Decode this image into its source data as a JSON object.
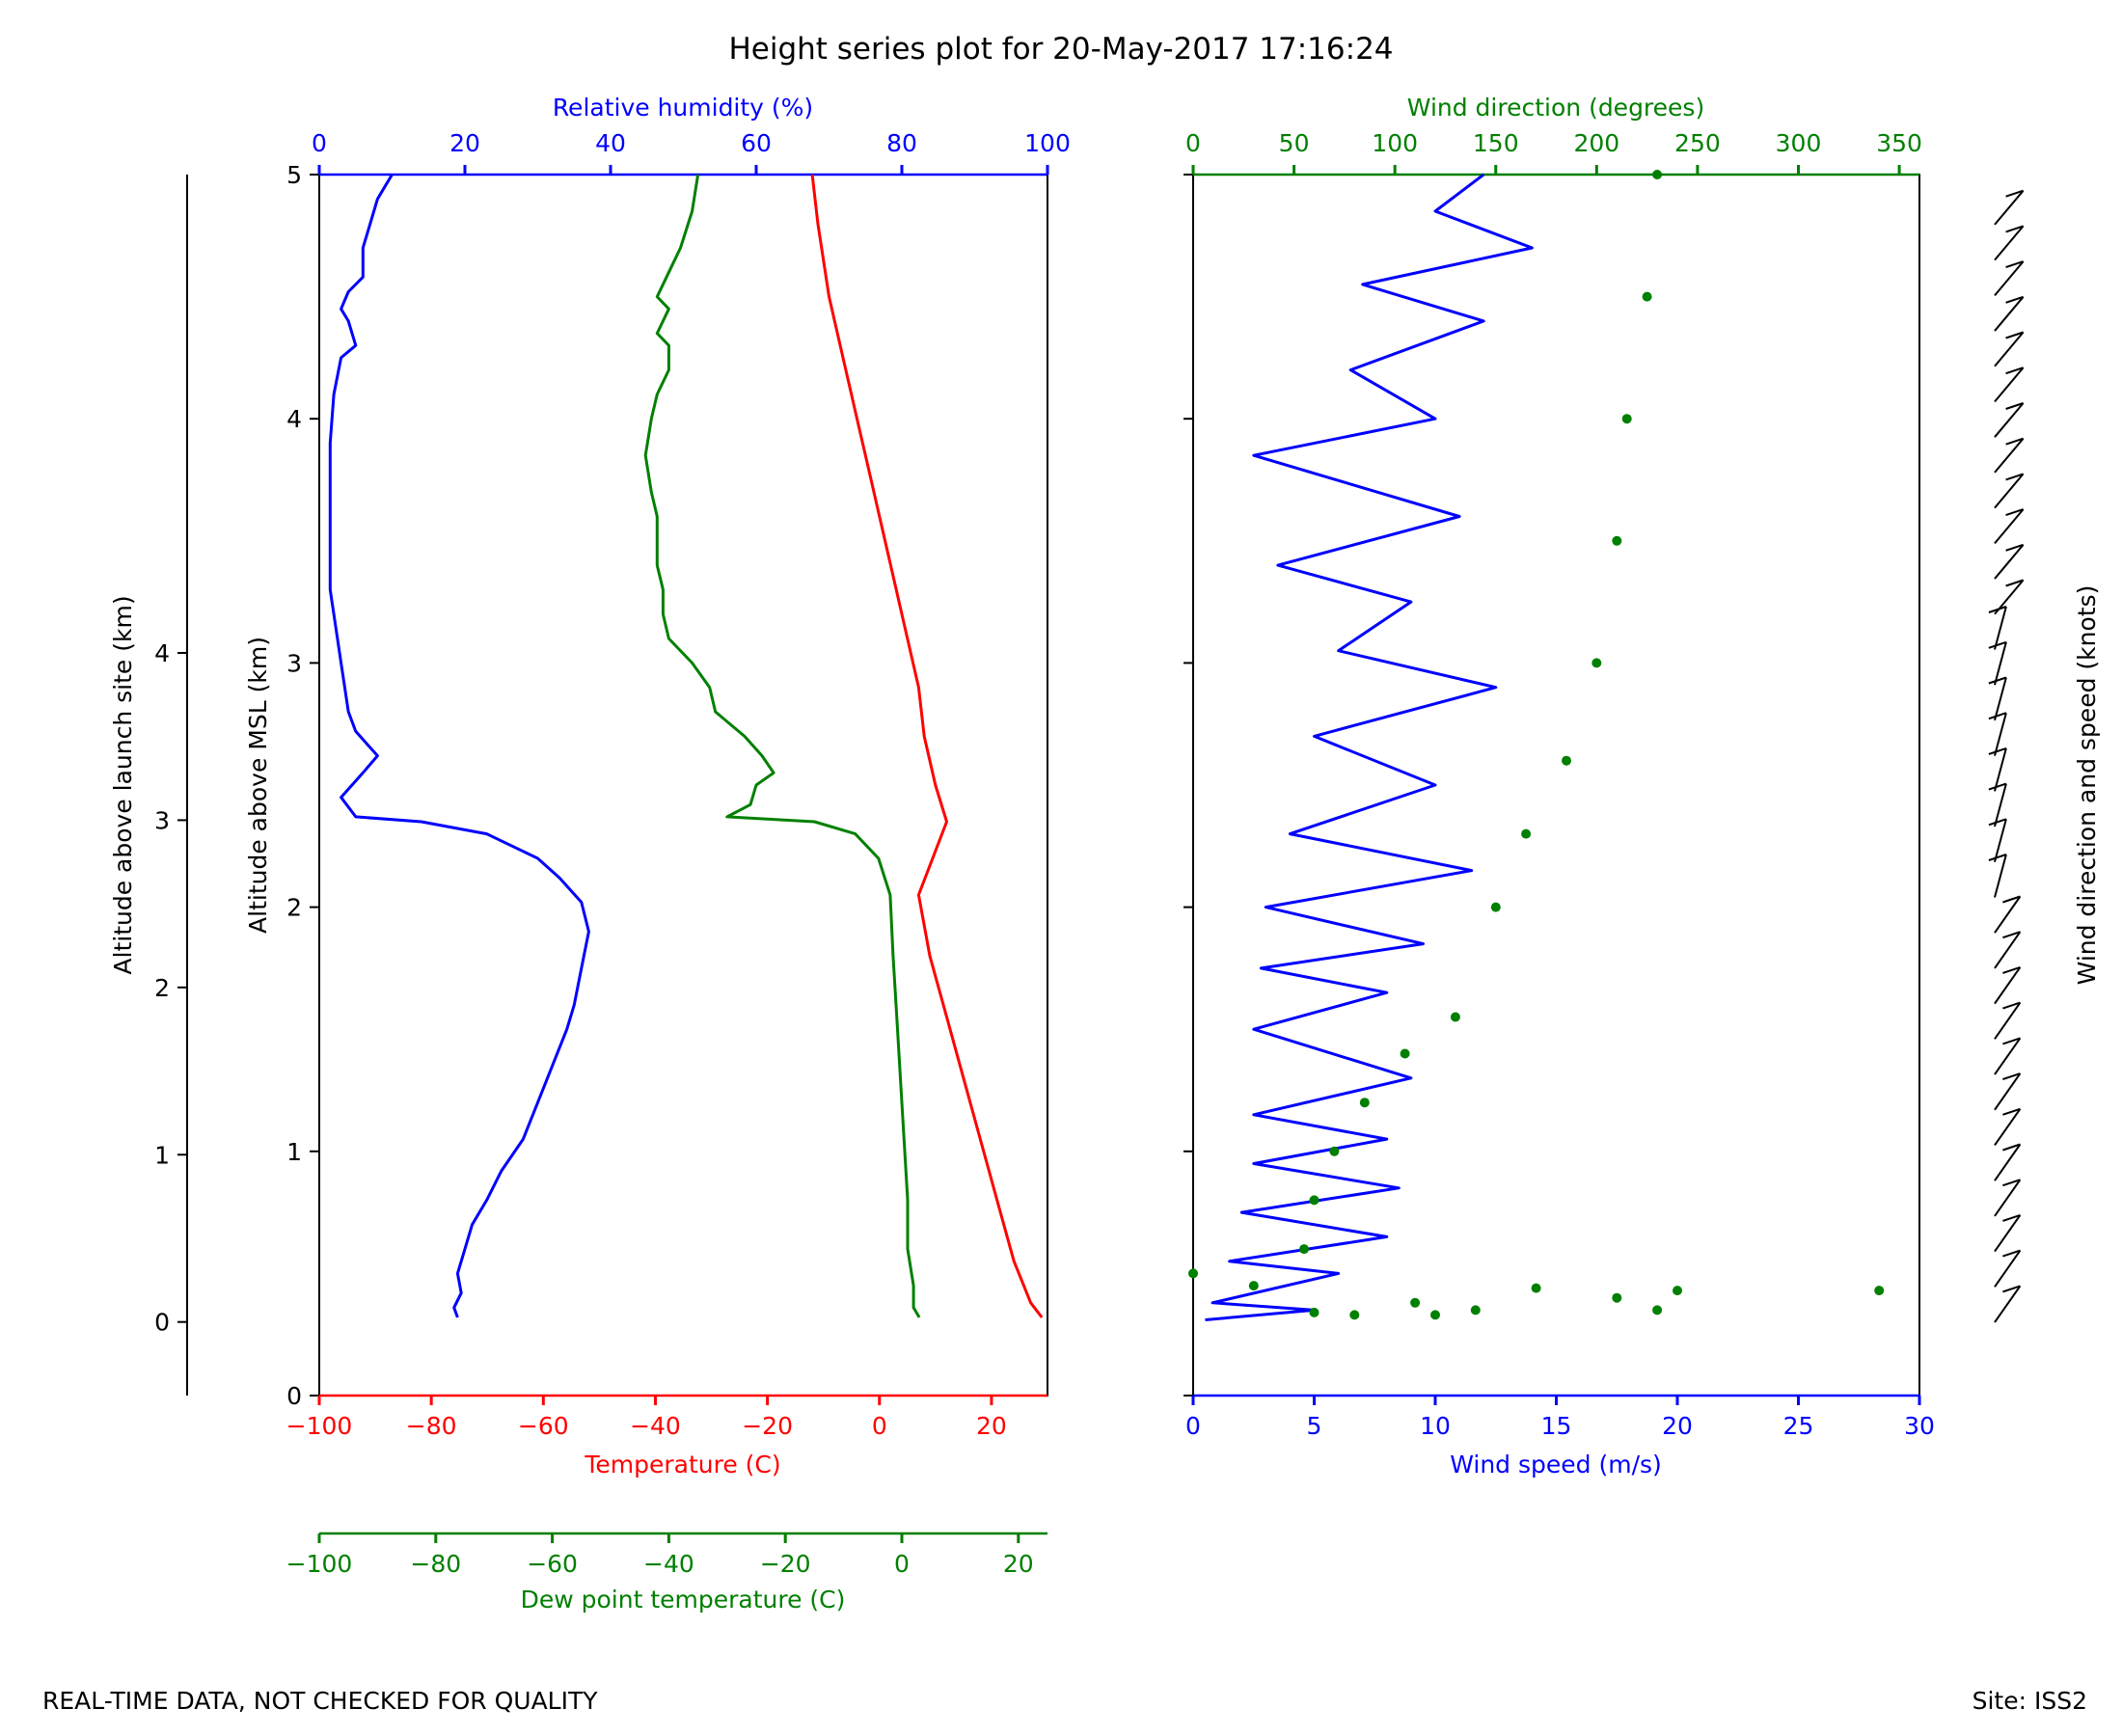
{
  "title": "Height series plot for 20-May-2017 17:16:24",
  "footer": {
    "quality": "REAL-TIME DATA, NOT CHECKED FOR QUALITY",
    "site": "Site: ISS2"
  },
  "colors": {
    "humidity": "#0000ff",
    "dewpoint": "#008000",
    "temperature": "#ff0000",
    "windspeed": "#0000ff",
    "winddir": "#008000",
    "barbs": "#000000",
    "axis": "#000000"
  },
  "chart_data": [
    {
      "type": "line",
      "name": "thermo-panel",
      "y_left_label": "Altitude above launch site (km)",
      "y_left_ticks": [
        "0",
        "1",
        "2",
        "3",
        "4"
      ],
      "y_left_range": [
        -0.44,
        6.86
      ],
      "y_msl_label": "Altitude above MSL (km)",
      "y_msl_ticks": [
        "0",
        "1",
        "2",
        "3",
        "4",
        "5"
      ],
      "y_msl_range": [
        0,
        5
      ],
      "top_axis": {
        "label": "Relative humidity (%)",
        "ticks": [
          "0",
          "20",
          "40",
          "60",
          "80",
          "100"
        ],
        "range": [
          0,
          100
        ]
      },
      "bottom_axis": {
        "label": "Temperature (C)",
        "ticks": [
          "−100",
          "−80",
          "−60",
          "−40",
          "−20",
          "0",
          "20"
        ],
        "range": [
          -100,
          30
        ]
      },
      "bottom2_axis": {
        "label": "Dew point temperature (C)",
        "ticks": [
          "−100",
          "−80",
          "−60",
          "−40",
          "−20",
          "0",
          "20"
        ],
        "range": [
          -100,
          25
        ]
      },
      "series": [
        {
          "name": "Temperature",
          "axis": "temperature",
          "color": "#ff0000",
          "points": [
            [
              29,
              0.32
            ],
            [
              27,
              0.38
            ],
            [
              24,
              0.55
            ],
            [
              21,
              0.8
            ],
            [
              18,
              1.05
            ],
            [
              15,
              1.3
            ],
            [
              12,
              1.55
            ],
            [
              9,
              1.8
            ],
            [
              7,
              2.05
            ],
            [
              12,
              2.35
            ],
            [
              10,
              2.5
            ],
            [
              8,
              2.7
            ],
            [
              7,
              2.9
            ],
            [
              6,
              3.0
            ],
            [
              5,
              3.1
            ],
            [
              4,
              3.2
            ],
            [
              2,
              3.4
            ],
            [
              0,
              3.6
            ],
            [
              -2,
              3.8
            ],
            [
              -4,
              4.0
            ],
            [
              -6,
              4.2
            ],
            [
              -9,
              4.5
            ],
            [
              -11,
              4.8
            ],
            [
              -12,
              5.0
            ]
          ]
        },
        {
          "name": "Relative humidity",
          "axis": "humidity",
          "color": "#0000ff",
          "points": [
            [
              19,
              0.32
            ],
            [
              18.5,
              0.36
            ],
            [
              19.5,
              0.42
            ],
            [
              19,
              0.5
            ],
            [
              20,
              0.6
            ],
            [
              21,
              0.7
            ],
            [
              23,
              0.8
            ],
            [
              25,
              0.92
            ],
            [
              28,
              1.05
            ],
            [
              30,
              1.2
            ],
            [
              32,
              1.35
            ],
            [
              34,
              1.5
            ],
            [
              35,
              1.6
            ],
            [
              36,
              1.75
            ],
            [
              37,
              1.9
            ],
            [
              36,
              2.02
            ],
            [
              33,
              2.12
            ],
            [
              30,
              2.2
            ],
            [
              23,
              2.3
            ],
            [
              14,
              2.35
            ],
            [
              5,
              2.37
            ],
            [
              3,
              2.45
            ],
            [
              6,
              2.55
            ],
            [
              8,
              2.62
            ],
            [
              5,
              2.72
            ],
            [
              4,
              2.8
            ],
            [
              3,
              3.0
            ],
            [
              2,
              3.2
            ],
            [
              1.5,
              3.3
            ],
            [
              1.5,
              3.6
            ],
            [
              1.5,
              3.9
            ],
            [
              2,
              4.1
            ],
            [
              3,
              4.25
            ],
            [
              5,
              4.3
            ],
            [
              4,
              4.4
            ],
            [
              3,
              4.45
            ],
            [
              4,
              4.52
            ],
            [
              6,
              4.58
            ],
            [
              6,
              4.7
            ],
            [
              7,
              4.8
            ],
            [
              8,
              4.9
            ],
            [
              9,
              4.95
            ],
            [
              10,
              5.0
            ]
          ]
        },
        {
          "name": "Dew point temperature",
          "axis": "dewpoint",
          "color": "#008000",
          "points": [
            [
              3,
              0.32
            ],
            [
              2,
              0.36
            ],
            [
              2,
              0.45
            ],
            [
              1,
              0.6
            ],
            [
              1,
              0.8
            ],
            [
              0.5,
              1.0
            ],
            [
              0,
              1.2
            ],
            [
              -0.5,
              1.4
            ],
            [
              -1,
              1.6
            ],
            [
              -1.5,
              1.8
            ],
            [
              -2,
              2.05
            ],
            [
              -4,
              2.2
            ],
            [
              -8,
              2.3
            ],
            [
              -15,
              2.35
            ],
            [
              -30,
              2.37
            ],
            [
              -26,
              2.42
            ],
            [
              -25,
              2.5
            ],
            [
              -22,
              2.55
            ],
            [
              -24,
              2.62
            ],
            [
              -27,
              2.7
            ],
            [
              -32,
              2.8
            ],
            [
              -33,
              2.9
            ],
            [
              -36,
              3.0
            ],
            [
              -40,
              3.1
            ],
            [
              -41,
              3.2
            ],
            [
              -41,
              3.3
            ],
            [
              -42,
              3.4
            ],
            [
              -42,
              3.6
            ],
            [
              -43,
              3.7
            ],
            [
              -44,
              3.85
            ],
            [
              -43,
              4.0
            ],
            [
              -42,
              4.1
            ],
            [
              -40,
              4.2
            ],
            [
              -40,
              4.3
            ],
            [
              -42,
              4.35
            ],
            [
              -40,
              4.45
            ],
            [
              -42,
              4.5
            ],
            [
              -40,
              4.6
            ],
            [
              -38,
              4.7
            ],
            [
              -36,
              4.85
            ],
            [
              -35,
              5.0
            ]
          ]
        }
      ]
    },
    {
      "type": "line",
      "name": "wind-panel",
      "top_axis": {
        "label": "Wind direction (degrees)",
        "ticks": [
          "0",
          "50",
          "100",
          "150",
          "200",
          "250",
          "300",
          "350"
        ],
        "range": [
          0,
          360
        ]
      },
      "bottom_axis": {
        "label": "Wind speed (m/s)",
        "ticks": [
          "0",
          "5",
          "10",
          "15",
          "20",
          "25",
          "30"
        ],
        "range": [
          0,
          30
        ]
      },
      "y_range": [
        0,
        5
      ],
      "series": [
        {
          "name": "Wind speed",
          "axis": "speed",
          "color": "#0000ff",
          "style": "line",
          "points": [
            [
              0.5,
              0.31
            ],
            [
              5,
              0.35
            ],
            [
              0.8,
              0.38
            ],
            [
              6,
              0.5
            ],
            [
              1.5,
              0.55
            ],
            [
              8,
              0.65
            ],
            [
              2,
              0.75
            ],
            [
              8.5,
              0.85
            ],
            [
              2.5,
              0.95
            ],
            [
              8,
              1.05
            ],
            [
              2.5,
              1.15
            ],
            [
              9,
              1.3
            ],
            [
              2.5,
              1.5
            ],
            [
              8,
              1.65
            ],
            [
              2.8,
              1.75
            ],
            [
              9.5,
              1.85
            ],
            [
              3,
              2.0
            ],
            [
              11.5,
              2.15
            ],
            [
              4,
              2.3
            ],
            [
              10,
              2.5
            ],
            [
              5,
              2.7
            ],
            [
              12.5,
              2.9
            ],
            [
              6,
              3.05
            ],
            [
              9,
              3.25
            ],
            [
              3.5,
              3.4
            ],
            [
              11,
              3.6
            ],
            [
              2.5,
              3.85
            ],
            [
              10,
              4.0
            ],
            [
              6.5,
              4.2
            ],
            [
              12,
              4.4
            ],
            [
              7,
              4.55
            ],
            [
              14,
              4.7
            ],
            [
              10,
              4.85
            ],
            [
              12,
              5.0
            ]
          ]
        },
        {
          "name": "Wind direction",
          "axis": "direction",
          "color": "#008000",
          "style": "dots",
          "points": [
            [
              0,
              0.5
            ],
            [
              30,
              0.45
            ],
            [
              60,
              0.34
            ],
            [
              80,
              0.33
            ],
            [
              110,
              0.38
            ],
            [
              120,
              0.33
            ],
            [
              140,
              0.35
            ],
            [
              170,
              0.44
            ],
            [
              210,
              0.4
            ],
            [
              230,
              0.35
            ],
            [
              240,
              0.43
            ],
            [
              340,
              0.43
            ],
            [
              55,
              0.6
            ],
            [
              60,
              0.8
            ],
            [
              70,
              1.0
            ],
            [
              85,
              1.2
            ],
            [
              105,
              1.4
            ],
            [
              130,
              1.55
            ],
            [
              150,
              2.0
            ],
            [
              165,
              2.3
            ],
            [
              185,
              2.6
            ],
            [
              200,
              3.0
            ],
            [
              210,
              3.5
            ],
            [
              215,
              4.0
            ],
            [
              225,
              4.5
            ],
            [
              230,
              5.0
            ]
          ]
        }
      ]
    },
    {
      "type": "barbs",
      "name": "wind-barbs",
      "y_label": "Wind direction and speed (knots)"
    }
  ]
}
